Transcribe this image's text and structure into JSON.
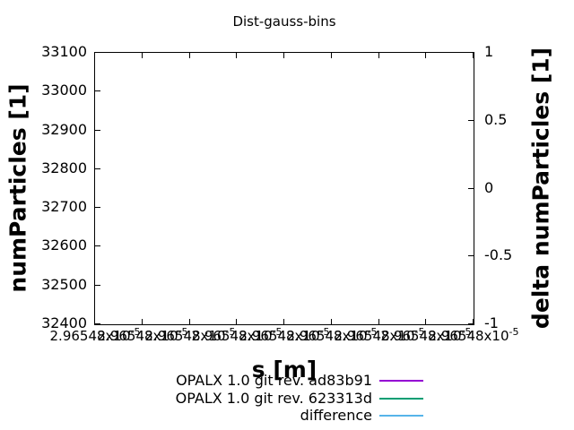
{
  "title": "Dist-gauss-bins",
  "axes": {
    "x": {
      "label": "s [m]",
      "tick_label": {
        "mantissa": "2.96548x10",
        "exponent": "-5"
      },
      "tick_count": 9
    },
    "y_left": {
      "label": "numParticles [1]",
      "ticks": [
        "33100",
        "33000",
        "32900",
        "32800",
        "32700",
        "32600",
        "32500",
        "32400"
      ]
    },
    "y_right": {
      "label": "delta numParticles [1]",
      "ticks": [
        "1",
        "0.5",
        "0",
        "-0.5",
        "-1"
      ]
    }
  },
  "legend": {
    "entries": [
      {
        "label": "OPALX 1.0 git rev. ad83b91",
        "color": "#9400d3"
      },
      {
        "label": "OPALX 1.0 git rev. 623313d",
        "color": "#009e73"
      },
      {
        "label": "difference",
        "color": "#56b4e9"
      }
    ]
  },
  "chart_data": {
    "type": "line",
    "title": "Dist-gauss-bins",
    "xlabel": "s [m]",
    "ylabel_left": "numParticles [1]",
    "ylabel_right": "delta numParticles [1]",
    "ylim_left": [
      32400,
      33100
    ],
    "y_left_tick_step": 100,
    "ylim_right": [
      -1,
      1
    ],
    "y_right_tick_step": 0.5,
    "x_tick_label_repeated": "2.96548x10^-5",
    "x_tick_repeat_count": 9,
    "grid": false,
    "legend_position": "below plot, bottom center-right",
    "series": [
      {
        "name": "OPALX 1.0 git rev. ad83b91",
        "color": "#9400d3",
        "axis": "left",
        "values": []
      },
      {
        "name": "OPALX 1.0 git rev. 623313d",
        "color": "#009e73",
        "axis": "left",
        "values": []
      },
      {
        "name": "difference",
        "color": "#56b4e9",
        "axis": "right",
        "values": []
      }
    ],
    "visible_data_points": "none (plot area empty; x-range collapsed near 2.96548e-5 m)"
  }
}
